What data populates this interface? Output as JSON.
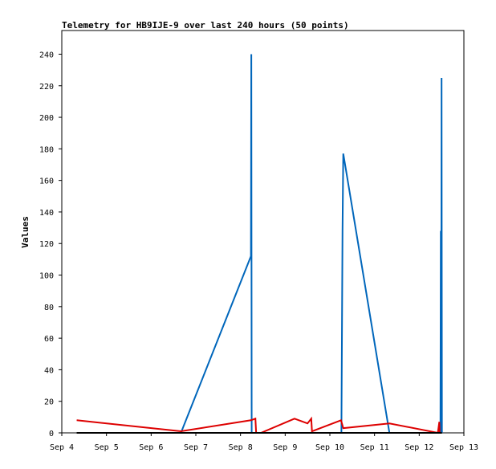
{
  "chart_data": {
    "type": "line",
    "title": "Telemetry for HB9IJE-9 over last 240 hours (50 points)",
    "xlabel": "",
    "ylabel": "Values",
    "x_axis": {
      "type": "date",
      "range": [
        "2024-09-04",
        "2024-09-13"
      ],
      "tick_labels": [
        "Sep 4",
        "Sep 5",
        "Sep 6",
        "Sep 7",
        "Sep 8",
        "Sep 9",
        "Sep 10",
        "Sep 11",
        "Sep 12",
        "Sep 13"
      ],
      "tick_dates": [
        "2024-09-04T00:00",
        "2024-09-05T00:00",
        "2024-09-06T00:00",
        "2024-09-07T00:00",
        "2024-09-08T00:00",
        "2024-09-09T00:00",
        "2024-09-10T00:00",
        "2024-09-11T00:00",
        "2024-09-12T00:00",
        "2024-09-13T00:00"
      ]
    },
    "ylim": [
      0,
      255
    ],
    "y_ticks": [
      0,
      20,
      40,
      60,
      80,
      100,
      120,
      140,
      160,
      180,
      200,
      220,
      240
    ],
    "grid": false,
    "legend": "none",
    "series": [
      {
        "color": "#0066bb",
        "points": [
          {
            "x": "2024-09-06T16:00",
            "y": 0
          },
          {
            "x": "2024-09-08T05:36",
            "y": 112
          },
          {
            "x": "2024-09-08T05:48",
            "y": 240
          },
          {
            "x": "2024-09-08T06:00",
            "y": 0
          },
          {
            "x": "2024-09-10T06:12",
            "y": 0
          },
          {
            "x": "2024-09-10T06:48",
            "y": 128
          },
          {
            "x": "2024-09-10T07:12",
            "y": 177
          },
          {
            "x": "2024-09-11T08:00",
            "y": 0
          },
          {
            "x": "2024-09-12T11:24",
            "y": 0
          },
          {
            "x": "2024-09-12T11:36",
            "y": 128
          },
          {
            "x": "2024-09-12T11:48",
            "y": 0
          },
          {
            "x": "2024-09-12T12:00",
            "y": 225
          },
          {
            "x": "2024-09-12T12:12",
            "y": 0
          }
        ]
      },
      {
        "color": "#dd0000",
        "points": [
          {
            "x": "2024-09-04T08:00",
            "y": 8
          },
          {
            "x": "2024-09-06T16:00",
            "y": 1
          },
          {
            "x": "2024-09-08T05:36",
            "y": 8
          },
          {
            "x": "2024-09-08T08:00",
            "y": 9
          },
          {
            "x": "2024-09-08T08:24",
            "y": 0
          },
          {
            "x": "2024-09-08T11:00",
            "y": 0
          },
          {
            "x": "2024-09-09T05:00",
            "y": 9
          },
          {
            "x": "2024-09-09T12:00",
            "y": 6
          },
          {
            "x": "2024-09-09T14:00",
            "y": 9
          },
          {
            "x": "2024-09-09T14:24",
            "y": 1
          },
          {
            "x": "2024-09-10T06:00",
            "y": 8
          },
          {
            "x": "2024-09-10T07:12",
            "y": 3
          },
          {
            "x": "2024-09-11T08:00",
            "y": 6
          },
          {
            "x": "2024-09-12T10:00",
            "y": 0
          },
          {
            "x": "2024-09-12T10:48",
            "y": 7
          },
          {
            "x": "2024-09-12T11:00",
            "y": 0
          }
        ]
      },
      {
        "color": "#000000",
        "points": [
          {
            "x": "2024-09-04T08:00",
            "y": 0
          },
          {
            "x": "2024-09-12T12:12",
            "y": 0
          }
        ]
      }
    ]
  }
}
